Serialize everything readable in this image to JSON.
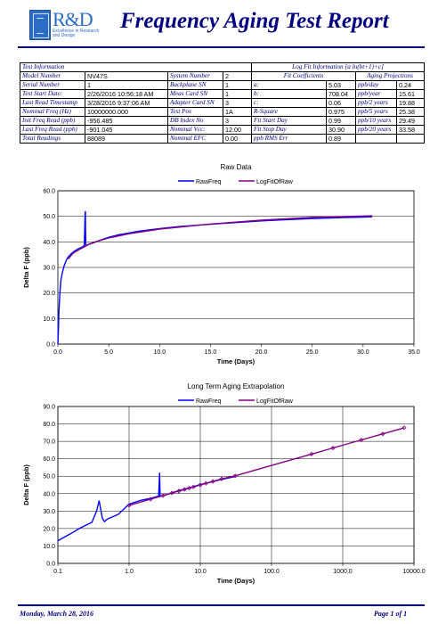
{
  "header": {
    "logo_text": "R&D",
    "logo_tagline": "Excellence in Research and Design",
    "title": "Frequency Aging Test Report"
  },
  "info_table": {
    "test_info_header": "Test Information",
    "log_fit_header": "Log Fit Information [a ln(bt+1)+c]",
    "fit_coeff_header": "Fit Coefficients",
    "aging_proj_header": "Aging Projections",
    "rows": [
      {
        "l1": "Model Number",
        "v1": "NV47S",
        "l2": "System Number",
        "v2": "2",
        "l3": "a:",
        "v3": "5.03",
        "l4": "ppb/day",
        "v4": "0.24"
      },
      {
        "l1": "Serial Number",
        "v1": "1",
        "l2": "Backplane SN",
        "v2": "1",
        "l3": "b:",
        "v3": "708.04",
        "l4": "ppb/year",
        "v4": "15.61"
      },
      {
        "l1": "Test Start Date:",
        "v1": "2/26/2016 10:56:18 AM",
        "l2": "Meas Card SN",
        "v2": "1",
        "l3": "c:",
        "v3": "0.06",
        "l4": "ppb/2 years",
        "v4": "19.88"
      },
      {
        "l1": "Last Read Timestamp",
        "v1": "3/28/2016 9:37:06 AM",
        "l2": "Adapter Card SN",
        "v2": "3",
        "l3": "R-Square",
        "v3": "0.975",
        "l4": "ppb/5 years",
        "v4": "25.38"
      },
      {
        "l1": "Nominal Freq (Hz)",
        "v1": "10000000.000",
        "l2": "Test Pos",
        "v2": "1A",
        "l3": "Fit Start Day",
        "v3": "0.99",
        "l4": "ppb/10 years",
        "v4": "29.49"
      },
      {
        "l1": "Init Freq Read (ppb)",
        "v1": "-956.485",
        "l2": "DB Index No",
        "v2": "3",
        "l3": "Fit Stop Day",
        "v3": "30.90",
        "l4": "ppb/20 years",
        "v4": "33.58"
      },
      {
        "l1": "Last Freq Read (ppb)",
        "v1": "-901.045",
        "l2": "Nominal Vcc:",
        "v2": "12.00",
        "l3": "ppb RMS Err",
        "v3": "0.89",
        "l4": "",
        "v4": ""
      },
      {
        "l1": "Total Readings",
        "v1": "88089",
        "l2": "Nominal EFC",
        "v2": "0.00",
        "l3": "",
        "v3": "",
        "l4": "",
        "v4": ""
      }
    ]
  },
  "chart_data": [
    {
      "type": "line",
      "title": "Raw Data",
      "xlabel": "Time (Days)",
      "ylabel": "Delta F (ppb)",
      "xlim": [
        0,
        35
      ],
      "ylim": [
        0,
        60
      ],
      "x_ticks": [
        "0.0",
        "5.0",
        "10.0",
        "15.0",
        "20.0",
        "25.0",
        "30.0",
        "35.0"
      ],
      "y_ticks": [
        "0.0",
        "10.0",
        "20.0",
        "30.0",
        "40.0",
        "50.0",
        "60.0"
      ],
      "grid": true,
      "legend": "top",
      "series": [
        {
          "name": "RawFreq",
          "color": "#0000ff",
          "x": [
            0.0,
            0.05,
            0.1,
            0.2,
            0.3,
            0.45,
            0.6,
            0.8,
            1.0,
            1.3,
            1.6,
            2.0,
            2.4,
            2.6,
            2.68,
            2.7,
            2.72,
            2.75,
            2.8,
            3.0,
            3.5,
            4.0,
            5.0,
            6.0,
            8.0,
            10.0,
            12.0,
            15.0,
            18.0,
            20.0,
            22.0,
            25.0,
            28.0,
            30.0,
            30.9
          ],
          "y": [
            0.0,
            5.5,
            12.0,
            20.0,
            25.0,
            28.0,
            30.5,
            32.5,
            34.0,
            35.3,
            36.3,
            37.3,
            38.0,
            38.6,
            50.8,
            52.0,
            44.0,
            38.4,
            38.6,
            39.0,
            39.7,
            40.4,
            41.8,
            42.8,
            44.2,
            45.2,
            46.0,
            46.9,
            47.7,
            48.2,
            48.6,
            49.1,
            49.5,
            49.7,
            49.8
          ]
        },
        {
          "name": "LogFitOfRaw",
          "color": "#800080",
          "x": [
            1.0,
            1.5,
            2.0,
            3.0,
            4.0,
            5.0,
            7.0,
            10.0,
            15.0,
            20.0,
            25.0,
            30.9
          ],
          "y": [
            33.3,
            35.5,
            36.8,
            38.9,
            40.4,
            41.5,
            43.2,
            45.0,
            47.0,
            48.5,
            49.6,
            50.2
          ]
        }
      ]
    },
    {
      "type": "line",
      "title": "Long Term Aging Extrapolation",
      "xlabel": "Time (Days)",
      "ylabel": "Delta F (ppb)",
      "x_scale": "log",
      "xlim": [
        0.1,
        10000
      ],
      "ylim": [
        0,
        90
      ],
      "x_ticks": [
        "0.1",
        "1.0",
        "10.0",
        "100.0",
        "1000.0",
        "10000.0"
      ],
      "y_ticks": [
        "0.0",
        "10.0",
        "20.0",
        "30.0",
        "40.0",
        "50.0",
        "60.0",
        "70.0",
        "80.0",
        "90.0"
      ],
      "grid": true,
      "legend": "top",
      "series": [
        {
          "name": "RawFreq",
          "color": "#0000ff",
          "x": [
            0.1,
            0.15,
            0.2,
            0.25,
            0.3,
            0.35,
            0.38,
            0.42,
            0.45,
            0.5,
            0.7,
            1.0,
            1.5,
            2.0,
            2.6,
            2.68,
            2.72,
            2.8,
            3.5,
            5.0,
            7.0,
            10.0,
            15.0,
            20.0,
            25.0,
            30.9
          ],
          "y": [
            13.0,
            17.0,
            20.0,
            22.0,
            23.5,
            30.0,
            36.0,
            26.0,
            24.0,
            25.5,
            28.0,
            34.0,
            36.3,
            37.3,
            38.6,
            52.0,
            38.4,
            38.6,
            39.7,
            41.8,
            43.3,
            45.2,
            46.9,
            48.2,
            49.0,
            49.8
          ]
        },
        {
          "name": "LogFitOfRaw",
          "color": "#800080",
          "x": [
            1.0,
            2.0,
            3.0,
            4.0,
            5.0,
            6.0,
            7.0,
            8.0,
            10.0,
            12.0,
            15.0,
            20.0,
            30.9,
            60.0,
            120.0,
            365.0,
            730.0,
            1825.0,
            3650.0,
            7300.0
          ],
          "y": [
            33.3,
            36.8,
            38.9,
            40.4,
            41.5,
            42.4,
            43.2,
            43.8,
            45.0,
            45.9,
            47.0,
            48.5,
            50.2,
            53.6,
            57.1,
            62.7,
            66.2,
            70.8,
            74.3,
            77.8
          ],
          "markers": [
            1.0,
            2.0,
            3.0,
            4.0,
            5.0,
            6.0,
            7.0,
            8.0,
            10.0,
            12.0,
            15.0,
            20.0,
            30.9,
            365.0,
            730.0,
            1825.0,
            3650.0,
            7300.0
          ]
        }
      ]
    }
  ],
  "footer": {
    "date": "Monday, March 28, 2016",
    "page": "Page 1 of 1"
  }
}
